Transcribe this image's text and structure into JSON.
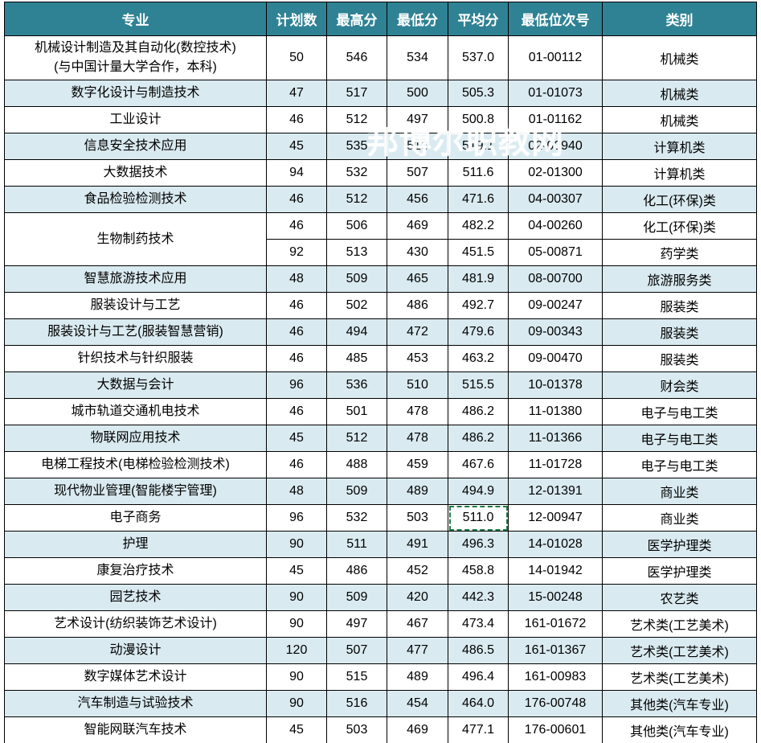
{
  "watermark": "邦博尔职教网",
  "colors": {
    "header_bg": "#2f8294",
    "header_text": "#ffffff",
    "stripe_bg": "#d9eaf0",
    "border": "#000000",
    "selection_green": "#1e7e4a"
  },
  "header": {
    "columns": [
      "专业",
      "计划数",
      "最高分",
      "最低分",
      "平均分",
      "最低位次号",
      "类别"
    ]
  },
  "table": {
    "rows": [
      {
        "major": "机械设计制造及其自动化(数控技术)",
        "major_line2": "(与中国计量大学合作，本科)",
        "plan": "50",
        "max": "546",
        "min": "534",
        "avg": "537.0",
        "rank": "01-00112",
        "category": "机械类"
      },
      {
        "major": "数字化设计与制造技术",
        "plan": "47",
        "max": "517",
        "min": "500",
        "avg": "505.3",
        "rank": "01-01073",
        "category": "机械类"
      },
      {
        "major": "工业设计",
        "plan": "46",
        "max": "512",
        "min": "497",
        "avg": "500.8",
        "rank": "01-01162",
        "category": "机械类"
      },
      {
        "major": "信息安全技术应用",
        "plan": "45",
        "max": "535",
        "min": "513",
        "avg": "519.1",
        "rank": "02-00940",
        "category": "计算机类"
      },
      {
        "major": "大数据技术",
        "plan": "94",
        "max": "532",
        "min": "507",
        "avg": "511.6",
        "rank": "02-01300",
        "category": "计算机类"
      },
      {
        "major": "食品检验检测技术",
        "plan": "46",
        "max": "512",
        "min": "456",
        "avg": "471.6",
        "rank": "04-00307",
        "category": "化工(环保)类"
      },
      {
        "major": "生物制药技术",
        "major_rowspan": 2,
        "plan": "46",
        "max": "506",
        "min": "469",
        "avg": "482.2",
        "rank": "04-00260",
        "category": "化工(环保)类"
      },
      {
        "major": null,
        "plan": "92",
        "max": "513",
        "min": "430",
        "avg": "451.5",
        "rank": "05-00871",
        "category": "药学类"
      },
      {
        "major": "智慧旅游技术应用",
        "plan": "48",
        "max": "509",
        "min": "465",
        "avg": "481.9",
        "rank": "08-00700",
        "category": "旅游服务类"
      },
      {
        "major": "服装设计与工艺",
        "plan": "46",
        "max": "502",
        "min": "486",
        "avg": "492.7",
        "rank": "09-00247",
        "category": "服装类"
      },
      {
        "major": "服装设计与工艺(服装智慧营销)",
        "plan": "46",
        "max": "494",
        "min": "472",
        "avg": "479.6",
        "rank": "09-00343",
        "category": "服装类"
      },
      {
        "major": "针织技术与针织服装",
        "plan": "46",
        "max": "485",
        "min": "453",
        "avg": "463.2",
        "rank": "09-00470",
        "category": "服装类"
      },
      {
        "major": "大数据与会计",
        "plan": "96",
        "max": "536",
        "min": "510",
        "avg": "515.5",
        "rank": "10-01378",
        "category": "财会类"
      },
      {
        "major": "城市轨道交通机电技术",
        "plan": "46",
        "max": "501",
        "min": "478",
        "avg": "486.2",
        "rank": "11-01380",
        "category": "电子与电工类"
      },
      {
        "major": "物联网应用技术",
        "plan": "45",
        "max": "512",
        "min": "478",
        "avg": "486.2",
        "rank": "11-01366",
        "category": "电子与电工类"
      },
      {
        "major": "电梯工程技术(电梯检验检测技术)",
        "plan": "46",
        "max": "488",
        "min": "459",
        "avg": "467.6",
        "rank": "11-01728",
        "category": "电子与电工类"
      },
      {
        "major": "现代物业管理(智能楼宇管理)",
        "plan": "48",
        "max": "509",
        "min": "489",
        "avg": "494.9",
        "rank": "12-01391",
        "category": "商业类"
      },
      {
        "major": "电子商务",
        "plan": "96",
        "max": "532",
        "min": "503",
        "avg": "511.0",
        "avg_selected": true,
        "rank": "12-00947",
        "category": "商业类"
      },
      {
        "major": "护理",
        "plan": "90",
        "max": "511",
        "min": "491",
        "avg": "496.3",
        "rank": "14-01028",
        "category": "医学护理类"
      },
      {
        "major": "康复治疗技术",
        "plan": "45",
        "max": "486",
        "min": "452",
        "avg": "458.8",
        "rank": "14-01942",
        "category": "医学护理类"
      },
      {
        "major": "园艺技术",
        "plan": "90",
        "max": "509",
        "min": "420",
        "avg": "442.3",
        "rank": "15-00248",
        "category": "农艺类"
      },
      {
        "major": "艺术设计(纺织装饰艺术设计)",
        "plan": "90",
        "max": "497",
        "min": "467",
        "avg": "473.4",
        "rank": "161-01672",
        "category": "艺术类(工艺美术)"
      },
      {
        "major": "动漫设计",
        "plan": "120",
        "max": "507",
        "min": "477",
        "avg": "486.5",
        "rank": "161-01367",
        "category": "艺术类(工艺美术)"
      },
      {
        "major": "数字媒体艺术设计",
        "plan": "90",
        "max": "515",
        "min": "489",
        "avg": "496.4",
        "rank": "161-00983",
        "category": "艺术类(工艺美术)"
      },
      {
        "major": "汽车制造与试验技术",
        "plan": "90",
        "max": "516",
        "min": "454",
        "avg": "464.0",
        "rank": "176-00748",
        "category": "其他类(汽车专业)"
      },
      {
        "major": "智能网联汽车技术",
        "plan": "45",
        "max": "503",
        "min": "469",
        "avg": "477.1",
        "rank": "176-00601",
        "category": "其他类(汽车专业)"
      }
    ]
  }
}
